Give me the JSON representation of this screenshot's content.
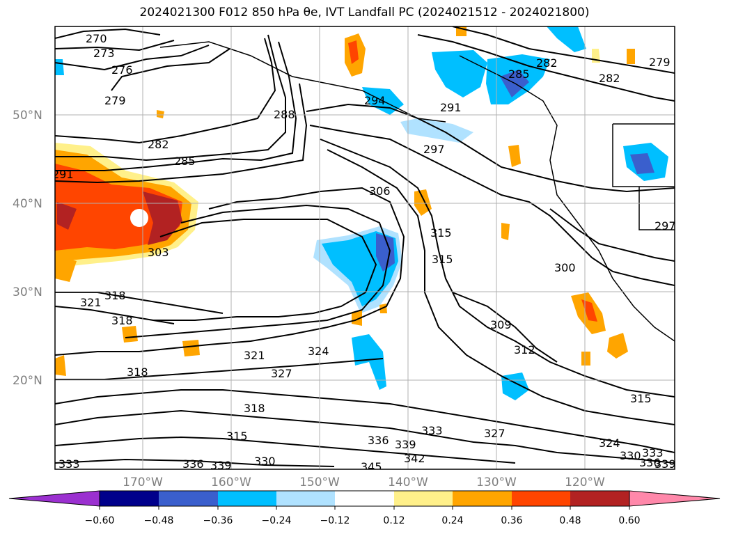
{
  "title": "2024021300 F012 850 hPa θe, IVT Landfall PC (2024021512 - 2024021800)",
  "lat_labels": [
    "50°N",
    "40°N",
    "30°N",
    "20°N"
  ],
  "lon_labels": [
    "170°W",
    "160°W",
    "150°W",
    "140°W",
    "130°W",
    "120°W"
  ],
  "contour_labels": [
    "270",
    "273",
    "276",
    "279",
    "282",
    "285",
    "291",
    "288",
    "294",
    "291",
    "297",
    "282",
    "279",
    "285",
    "282",
    "306",
    "303",
    "315",
    "315",
    "300",
    "297",
    "321",
    "318",
    "318",
    "318",
    "321",
    "324",
    "327",
    "309",
    "312",
    "315",
    "318",
    "315",
    "333",
    "336",
    "339",
    "342",
    "327",
    "324",
    "330",
    "333",
    "336",
    "339",
    "333",
    "336",
    "339",
    "330",
    "345"
  ],
  "colorbar": {
    "ticks": [
      "−0.60",
      "−0.48",
      "−0.36",
      "−0.24",
      "−0.12",
      "0.12",
      "0.24",
      "0.36",
      "0.48",
      "0.60"
    ],
    "colors": {
      "under": "#9b30d0",
      "bins": [
        "#00008b",
        "#3a5fcd",
        "#00bfff",
        "#b0e2ff",
        "#ffffff",
        "#fff08a",
        "#ffa500",
        "#ff4500",
        "#b22222"
      ],
      "over": "#ff88aa"
    }
  },
  "ivt_colors": {
    "blue_dark": "#3a5fcd",
    "blue_mid": "#00bfff",
    "blue_light": "#b0e2ff",
    "yellow": "#fff08a",
    "orange": "#ffa500",
    "red_orange": "#ff4500",
    "dark_red": "#b22222"
  }
}
